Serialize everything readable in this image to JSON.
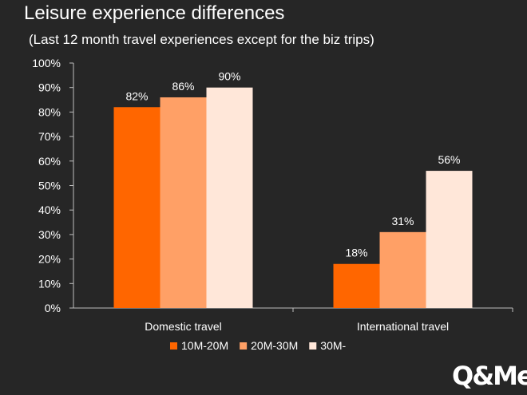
{
  "chart_data": {
    "type": "bar",
    "title": "Leisure experience differences",
    "subtitle": "(Last 12 month travel experiences except for the biz trips)",
    "categories": [
      "Domestic travel",
      "International travel"
    ],
    "series": [
      {
        "name": "10M-20M",
        "values": [
          82,
          18
        ],
        "color": "#ff6600"
      },
      {
        "name": "20M-30M",
        "values": [
          86,
          31
        ],
        "color": "#ffa066"
      },
      {
        "name": "30M-",
        "values": [
          90,
          56
        ],
        "color": "#ffe7d9"
      }
    ],
    "data_labels": [
      [
        "82%",
        "18%"
      ],
      [
        "86%",
        "31%"
      ],
      [
        "90%",
        "56%"
      ]
    ],
    "yticks": [
      "0%",
      "10%",
      "20%",
      "30%",
      "40%",
      "50%",
      "60%",
      "70%",
      "80%",
      "90%",
      "100%"
    ],
    "ylim": [
      0,
      100
    ],
    "xlabel": "",
    "ylabel": "",
    "legend_position": "bottom",
    "grid": false
  },
  "logo_text": "Q&Me"
}
